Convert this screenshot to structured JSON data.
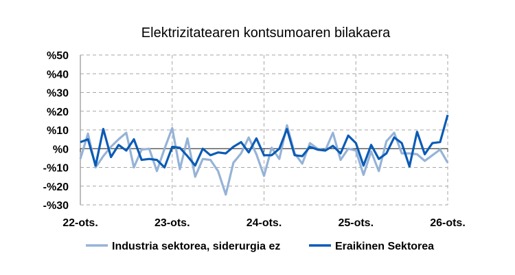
{
  "chart_data": {
    "type": "line",
    "title": "Elektrizitatearen kontsumoaren bilakaera",
    "xlabel": "",
    "ylabel": "",
    "ylim": [
      -30,
      50
    ],
    "yticks": [
      50,
      40,
      30,
      20,
      10,
      0,
      -10,
      -20,
      -30
    ],
    "ytick_labels": [
      "%50",
      "%40",
      "%30",
      "%20",
      "%10",
      "%0",
      "-%10",
      "-%20",
      "-%30"
    ],
    "xtick_labels": [
      "22-ots.",
      "23-ots.",
      "24-ots.",
      "25-ots.",
      "26-ots."
    ],
    "xtick_index": [
      0,
      12,
      24,
      36,
      48
    ],
    "n_points": 49,
    "grid": true,
    "legend_position": "bottom",
    "series": [
      {
        "name": "Industria sektorea, siderurgia ez",
        "color": "#95b3d7",
        "values": [
          -5.5,
          8,
          -10,
          -4,
          1,
          5,
          8.5,
          -10,
          -0.5,
          0,
          -12,
          0,
          11,
          -11,
          5.5,
          -15,
          -5.5,
          -6,
          -12,
          -24.5,
          -7.5,
          -2.5,
          6,
          -3,
          -14.5,
          0.5,
          -5.5,
          12.5,
          -2.5,
          -8,
          3,
          0,
          -1,
          8.5,
          -6,
          0,
          -1,
          -14,
          -1.5,
          -12,
          4,
          8.5,
          -2.5,
          -2.5,
          -3,
          -6.5,
          -3.5,
          -0.5,
          -7.5
        ]
      },
      {
        "name": "Eraikinen Sektorea",
        "color": "#0a5bb5",
        "values": [
          3.5,
          5,
          -9,
          10.5,
          -4.5,
          2,
          -1,
          5,
          -6,
          -5.5,
          -6,
          -10,
          1,
          0.5,
          -4,
          -9,
          0,
          -3.5,
          -2,
          -2.5,
          1,
          3.5,
          -2,
          5.5,
          -3.5,
          -3.5,
          0,
          10.5,
          -3.5,
          -4,
          1,
          -0.5,
          -1,
          1.5,
          -2.5,
          7,
          3,
          -9,
          2,
          -5.5,
          -2.5,
          6,
          3,
          -9.5,
          9,
          -3,
          3,
          3.5,
          18
        ]
      }
    ]
  }
}
